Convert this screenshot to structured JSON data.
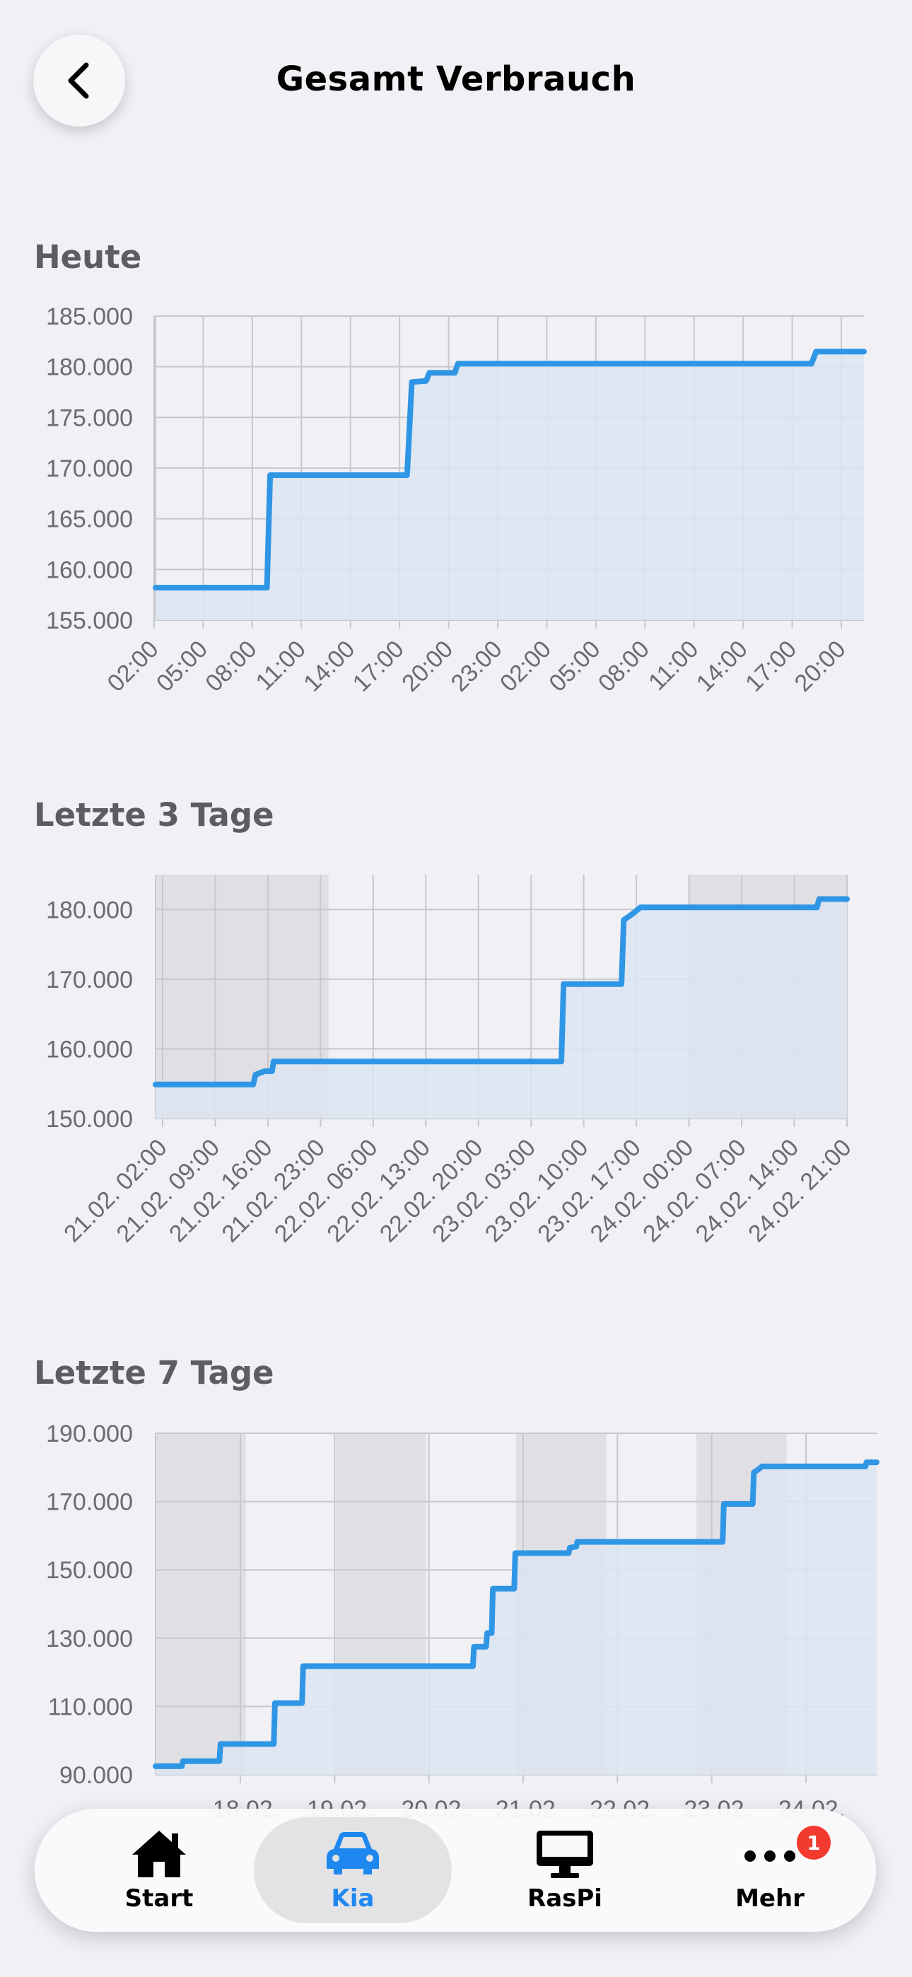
{
  "header": {
    "title": "Gesamt Verbrauch",
    "back_icon": "chevron-left-icon"
  },
  "colors": {
    "line": "#2f96e6",
    "fill": "#dce5f2",
    "shade": "rgba(120,118,130,0.14)",
    "grid": "#c8c8cc",
    "active": "#1e88f0"
  },
  "sections": [
    {
      "title": "Heute"
    },
    {
      "title": "Letzte 3 Tage"
    },
    {
      "title": "Letzte 7 Tage"
    }
  ],
  "chart_data": [
    {
      "type": "area",
      "step": true,
      "ylim": [
        155000,
        185000
      ],
      "y_ticks": [
        "185.000",
        "180.000",
        "175.000",
        "170.000",
        "165.000",
        "160.000",
        "155.000"
      ],
      "x_ticks": [
        "02:00",
        "05:00",
        "08:00",
        "11:00",
        "14:00",
        "17:00",
        "20:00",
        "23:00",
        "02:00",
        "05:00",
        "08:00",
        "11:00",
        "14:00",
        "17:00",
        "20:00"
      ],
      "x_range": [
        -1,
        43.5
      ],
      "shaded": [],
      "points": [
        [
          -1,
          158200
        ],
        [
          6,
          158200
        ],
        [
          6.2,
          169300
        ],
        [
          14.8,
          169300
        ],
        [
          15.1,
          178500
        ],
        [
          16,
          178600
        ],
        [
          16.2,
          179400
        ],
        [
          17.8,
          179400
        ],
        [
          18,
          180300
        ],
        [
          40.2,
          180300
        ],
        [
          40.5,
          181500
        ],
        [
          43.5,
          181500
        ]
      ]
    },
    {
      "type": "area",
      "step": true,
      "ylim": [
        150000,
        185000
      ],
      "y_ticks": [
        "180.000",
        "170.000",
        "160.000",
        "150.000"
      ],
      "x_ticks": [
        "21.02. 02:00",
        "21.02. 09:00",
        "21.02. 16:00",
        "21.02. 23:00",
        "22.02. 06:00",
        "22.02. 13:00",
        "22.02. 20:00",
        "23.02. 03:00",
        "23.02. 10:00",
        "23.02. 17:00",
        "24.02. 00:00",
        "24.02. 07:00",
        "24.02. 14:00",
        "24.02. 21:00"
      ],
      "x_range": [
        1,
        93
      ],
      "shaded": [
        [
          1,
          24
        ],
        [
          72,
          96
        ]
      ],
      "points": [
        [
          1,
          154900
        ],
        [
          14,
          154900
        ],
        [
          14.3,
          156300
        ],
        [
          15.5,
          156800
        ],
        [
          16.5,
          156800
        ],
        [
          16.7,
          158200
        ],
        [
          55,
          158200
        ],
        [
          55.3,
          169300
        ],
        [
          63,
          169300
        ],
        [
          63.3,
          178500
        ],
        [
          64.5,
          179400
        ],
        [
          65.5,
          180300
        ],
        [
          89,
          180300
        ],
        [
          89.3,
          181500
        ],
        [
          93,
          181500
        ]
      ]
    },
    {
      "type": "area",
      "step": true,
      "ylim": [
        90000,
        190000
      ],
      "y_ticks": [
        "190.000",
        "170.000",
        "150.000",
        "130.000",
        "110.000",
        "90.000"
      ],
      "x_ticks": [
        "18.02.",
        "19.02.",
        "20.02.",
        "21.02.",
        "22.02.",
        "23.02.",
        "24.02."
      ],
      "x_range": [
        0,
        192
      ],
      "shaded": [
        [
          0,
          24
        ],
        [
          48,
          72
        ],
        [
          96,
          120
        ],
        [
          144,
          168
        ]
      ],
      "points": [
        [
          0,
          92500
        ],
        [
          7,
          92500
        ],
        [
          7.3,
          94000
        ],
        [
          17,
          94000
        ],
        [
          17.3,
          99000
        ],
        [
          31.5,
          99000
        ],
        [
          31.8,
          111000
        ],
        [
          39,
          111000
        ],
        [
          39.3,
          121800
        ],
        [
          84.5,
          121800
        ],
        [
          84.8,
          127500
        ],
        [
          88,
          127500
        ],
        [
          88.3,
          131500
        ],
        [
          89.5,
          131500
        ],
        [
          89.8,
          144500
        ],
        [
          95.5,
          144500
        ],
        [
          95.8,
          154900
        ],
        [
          110,
          154900
        ],
        [
          110.3,
          156500
        ],
        [
          112,
          156800
        ],
        [
          112.3,
          158200
        ],
        [
          151,
          158200
        ],
        [
          151.3,
          169300
        ],
        [
          159,
          169300
        ],
        [
          159.3,
          178500
        ],
        [
          160.5,
          179400
        ],
        [
          161.5,
          180300
        ],
        [
          189,
          180300
        ],
        [
          189.3,
          181500
        ],
        [
          192,
          181500
        ]
      ]
    }
  ],
  "tabbar": {
    "items": [
      {
        "label": "Start",
        "icon": "house-icon"
      },
      {
        "label": "Kia",
        "icon": "car-icon"
      },
      {
        "label": "RasPi",
        "icon": "monitor-icon"
      },
      {
        "label": "Mehr",
        "icon": "ellipsis-icon"
      }
    ],
    "badge": "1"
  }
}
